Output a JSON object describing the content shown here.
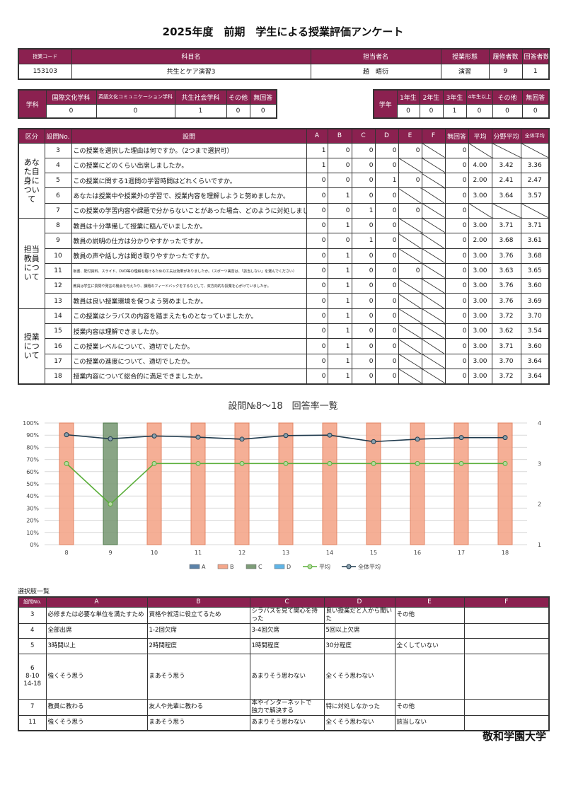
{
  "title": "2025年度　前期　学生による授業評価アンケート",
  "course": {
    "headers": [
      "授業コード",
      "科目名",
      "担当者名",
      "授業形態",
      "履修者数",
      "回答者数"
    ],
    "values": [
      "153103",
      "共生とケア演習3",
      "趙　晤衍",
      "演習",
      "9",
      "1"
    ]
  },
  "department": {
    "label": "学科",
    "headers": [
      "国際文化学科",
      "英語文化コミュニケーション学科",
      "共生社会学科",
      "その他",
      "無回答"
    ],
    "values": [
      "0",
      "0",
      "1",
      "0",
      "0"
    ]
  },
  "year": {
    "label": "学年",
    "headers": [
      "1年生",
      "2年生",
      "3年生",
      "4年生以上",
      "その他",
      "無回答"
    ],
    "values": [
      "0",
      "0",
      "1",
      "0",
      "0",
      "0"
    ]
  },
  "survey": {
    "headers": [
      "区分",
      "設問No.",
      "設問",
      "A",
      "B",
      "C",
      "D",
      "E",
      "F",
      "無回答",
      "平均",
      "分野平均",
      "全体平均"
    ],
    "sections": [
      {
        "label": "あなた自身について",
        "rows": [
          {
            "no": "3",
            "q": "この授業を選択した理由は何ですか。（2つまで選択可）",
            "counts": [
              "1",
              "0",
              "0",
              "0",
              "0",
              null
            ],
            "na": "0",
            "avg": null,
            "field": null,
            "overall": null
          },
          {
            "no": "4",
            "q": "この授業にどのくらい出席しましたか。",
            "counts": [
              "1",
              "0",
              "0",
              "0",
              null,
              null
            ],
            "na": "0",
            "avg": "4.00",
            "field": "3.42",
            "overall": "3.36"
          },
          {
            "no": "5",
            "q": "この授業に関する1週間の学習時間はどれくらいですか。",
            "counts": [
              "0",
              "0",
              "0",
              "1",
              "0",
              null
            ],
            "na": "0",
            "avg": "2.00",
            "field": "2.41",
            "overall": "2.47"
          },
          {
            "no": "6",
            "q": "あなたは授業中や授業外の学習で、授業内容を理解しようと努めましたか。",
            "counts": [
              "0",
              "1",
              "0",
              "0",
              null,
              null
            ],
            "na": "0",
            "avg": "3.00",
            "field": "3.64",
            "overall": "3.57"
          },
          {
            "no": "7",
            "q": "この授業の学習内容や課題で分からないことがあった場合、どのように対処しましたか。",
            "counts": [
              "0",
              "0",
              "1",
              "0",
              "0",
              null
            ],
            "na": "0",
            "avg": null,
            "field": null,
            "overall": null
          }
        ]
      },
      {
        "label": "担当教員について",
        "rows": [
          {
            "no": "8",
            "q": "教員は十分準備して授業に臨んでいましたか。",
            "counts": [
              "0",
              "1",
              "0",
              "0",
              null,
              null
            ],
            "na": "0",
            "avg": "3.00",
            "field": "3.71",
            "overall": "3.71"
          },
          {
            "no": "9",
            "q": "教員の説明の仕方は分かりやすかったですか。",
            "counts": [
              "0",
              "0",
              "1",
              "0",
              null,
              null
            ],
            "na": "0",
            "avg": "2.00",
            "field": "3.68",
            "overall": "3.61"
          },
          {
            "no": "10",
            "q": "教員の声や話し方は聞き取りやすかったですか。",
            "counts": [
              "0",
              "1",
              "0",
              "0",
              null,
              null
            ],
            "na": "0",
            "avg": "3.00",
            "field": "3.76",
            "overall": "3.68"
          },
          {
            "no": "11",
            "q": "板書、配付資料、スライド、DVD等の理解を助けるための工夫は効果がありましたか。（スポーツ実習は、「該当しない」を選んでください）",
            "counts": [
              "0",
              "1",
              "0",
              "0",
              "0",
              null
            ],
            "na": "0",
            "avg": "3.00",
            "field": "3.63",
            "overall": "3.65",
            "small": true
          },
          {
            "no": "12",
            "q": "教員は学生に質問や発言の機会を与えたり、課題のフィードバックをするなどして、双方向的な授業を心がけていましたか。",
            "counts": [
              "0",
              "1",
              "0",
              "0",
              null,
              null
            ],
            "na": "0",
            "avg": "3.00",
            "field": "3.76",
            "overall": "3.60",
            "small": true
          },
          {
            "no": "13",
            "q": "教員は良い授業環境を保つよう努めましたか。",
            "counts": [
              "0",
              "1",
              "0",
              "0",
              null,
              null
            ],
            "na": "0",
            "avg": "3.00",
            "field": "3.76",
            "overall": "3.69"
          }
        ]
      },
      {
        "label": "授業について",
        "rows": [
          {
            "no": "14",
            "q": "この授業はシラバスの内容を踏まえたものとなっていましたか。",
            "counts": [
              "0",
              "1",
              "0",
              "0",
              null,
              null
            ],
            "na": "0",
            "avg": "3.00",
            "field": "3.72",
            "overall": "3.70"
          },
          {
            "no": "15",
            "q": "授業内容は理解できましたか。",
            "counts": [
              "0",
              "1",
              "0",
              "0",
              null,
              null
            ],
            "na": "0",
            "avg": "3.00",
            "field": "3.62",
            "overall": "3.54"
          },
          {
            "no": "16",
            "q": "この授業レベルについて、適切でしたか。",
            "counts": [
              "0",
              "1",
              "0",
              "0",
              null,
              null
            ],
            "na": "0",
            "avg": "3.00",
            "field": "3.71",
            "overall": "3.60"
          },
          {
            "no": "17",
            "q": "この授業の進度について、適切でしたか。",
            "counts": [
              "0",
              "1",
              "0",
              "0",
              null,
              null
            ],
            "na": "0",
            "avg": "3.00",
            "field": "3.70",
            "overall": "3.64"
          },
          {
            "no": "18",
            "q": "授業内容について総合的に満足できましたか。",
            "counts": [
              "0",
              "1",
              "0",
              "0",
              null,
              null
            ],
            "na": "0",
            "avg": "3.00",
            "field": "3.72",
            "overall": "3.64"
          }
        ]
      }
    ]
  },
  "chart_data": {
    "type": "bar+line",
    "title": "設問№8～18　回答率一覧",
    "categories": [
      "8",
      "9",
      "10",
      "11",
      "12",
      "13",
      "14",
      "15",
      "16",
      "17",
      "18"
    ],
    "y_left": {
      "range": [
        0,
        100
      ],
      "unit": "%",
      "ticks": [
        "0%",
        "10%",
        "20%",
        "30%",
        "40%",
        "50%",
        "60%",
        "70%",
        "80%",
        "90%",
        "100%"
      ]
    },
    "y_right": {
      "range": [
        1,
        4
      ],
      "ticks": [
        "1",
        "2",
        "3",
        "4"
      ]
    },
    "grid": true,
    "legend": "bottom",
    "series": [
      {
        "name": "A",
        "type": "bar",
        "axis": "left",
        "color": "#5b82a8",
        "values": [
          0,
          0,
          0,
          0,
          0,
          0,
          0,
          0,
          0,
          0,
          0
        ]
      },
      {
        "name": "B",
        "type": "bar",
        "axis": "left",
        "color": "#f4a78b",
        "values": [
          100,
          0,
          100,
          100,
          100,
          100,
          100,
          100,
          100,
          100,
          100
        ]
      },
      {
        "name": "C",
        "type": "bar",
        "axis": "left",
        "color": "#7d9c78",
        "values": [
          0,
          100,
          0,
          0,
          0,
          0,
          0,
          0,
          0,
          0,
          0
        ]
      },
      {
        "name": "D",
        "type": "bar",
        "axis": "left",
        "color": "#5fb4e6",
        "values": [
          0,
          0,
          0,
          0,
          0,
          0,
          0,
          0,
          0,
          0,
          0
        ]
      },
      {
        "name": "平均",
        "type": "line",
        "axis": "right",
        "color": "#5aae3a",
        "values": [
          3,
          2,
          3,
          3,
          3,
          3,
          3,
          3,
          3,
          3,
          3
        ]
      },
      {
        "name": "全体平均",
        "type": "line",
        "axis": "right",
        "color": "#1f3a4d",
        "values": [
          3.71,
          3.61,
          3.68,
          3.65,
          3.6,
          3.69,
          3.7,
          3.54,
          3.6,
          3.64,
          3.64
        ]
      }
    ]
  },
  "options": {
    "label": "選択肢一覧",
    "headers": [
      "設問No.",
      "A",
      "B",
      "C",
      "D",
      "E",
      "F"
    ],
    "rows": [
      [
        "3",
        "必修または必要な単位を満たすため",
        "資格や就活に役立てるため",
        "シラバスを見て関心を持った",
        "良い授業だと人から聞いた",
        "その他",
        ""
      ],
      [
        "4",
        "全部出席",
        "1-2回欠席",
        "3-4回欠席",
        "5回以上欠席",
        "",
        ""
      ],
      [
        "5",
        "3時間以上",
        "2時間程度",
        "1時間程度",
        "30分程度",
        "全くしていない",
        ""
      ],
      [
        "6\n8-10\n14-18",
        "強くそう思う",
        "まあそう思う",
        "あまりそう思わない",
        "全くそう思わない",
        "",
        ""
      ],
      [
        "7",
        "教員に教わる",
        "友人や先輩に教わる",
        "本やインターネットで\n独力で解決する",
        "特に対処しなかった",
        "その他",
        ""
      ],
      [
        "11",
        "強くそう思う",
        "まあそう思う",
        "あまりそう思わない",
        "全くそう思わない",
        "該当しない",
        ""
      ]
    ]
  },
  "footer": "敬和学園大学",
  "colors": {
    "header": "#8b2150"
  }
}
